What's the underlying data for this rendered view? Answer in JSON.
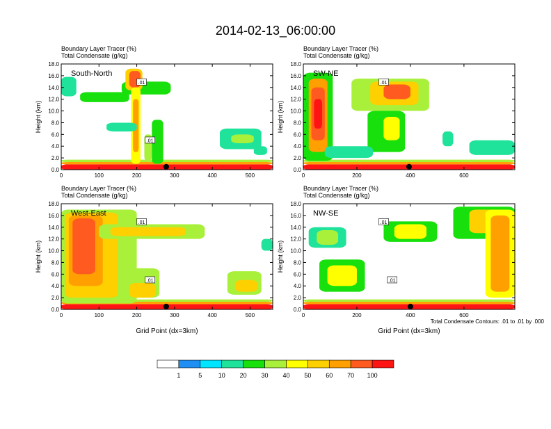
{
  "figure_title": "2014-02-13_06:00:00",
  "chart_data": [
    {
      "type": "heatmap",
      "title": "South-North",
      "header_line1": "Boundary Layer Tracer    (%)",
      "header_line2": "Total Condensate   (g/kg)",
      "ylabel": "Height (km)",
      "xlabel": "",
      "xlim": [
        0,
        560
      ],
      "ylim": [
        0,
        18
      ],
      "xticks": [
        0,
        100,
        200,
        300,
        400,
        500
      ],
      "yticks": [
        "0.0",
        "2.0",
        "4.0",
        "6.0",
        "8.0",
        "10.0",
        "12.0",
        "14.0",
        "16.0",
        "18.0"
      ],
      "contour_labels": [
        ".01",
        ".01"
      ],
      "marker_x": 278,
      "shapes": [
        {
          "x": [
            0,
            560
          ],
          "y": [
            0,
            0.9
          ],
          "level": 100
        },
        {
          "x": [
            0,
            560
          ],
          "y": [
            0.9,
            1.3
          ],
          "level": 60
        },
        {
          "x": [
            0,
            560
          ],
          "y": [
            1.3,
            1.7
          ],
          "level": 30
        },
        {
          "x": [
            0,
            40
          ],
          "y": [
            12.5,
            15.8
          ],
          "level": 10
        },
        {
          "x": [
            50,
            180
          ],
          "y": [
            11.5,
            13.2
          ],
          "level": 20
        },
        {
          "x": [
            160,
            290
          ],
          "y": [
            12.8,
            15.0
          ],
          "level": 20
        },
        {
          "x": [
            170,
            215
          ],
          "y": [
            13.5,
            17.2
          ],
          "level": 50
        },
        {
          "x": [
            180,
            210
          ],
          "y": [
            14.0,
            16.8
          ],
          "level": 70
        },
        {
          "x": [
            185,
            210
          ],
          "y": [
            1.0,
            14.0
          ],
          "level": 40
        },
        {
          "x": [
            190,
            205
          ],
          "y": [
            3.0,
            12.0
          ],
          "level": 60
        },
        {
          "x": [
            120,
            200
          ],
          "y": [
            6.5,
            8.0
          ],
          "level": 10
        },
        {
          "x": [
            220,
            240
          ],
          "y": [
            1.5,
            6.0
          ],
          "level": 30
        },
        {
          "x": [
            240,
            270
          ],
          "y": [
            1.0,
            8.5
          ],
          "level": 20
        },
        {
          "x": [
            420,
            530
          ],
          "y": [
            3.5,
            7.0
          ],
          "level": 10
        },
        {
          "x": [
            450,
            510
          ],
          "y": [
            4.5,
            6.0
          ],
          "level": 30
        },
        {
          "x": [
            510,
            545
          ],
          "y": [
            2.5,
            4.0
          ],
          "level": 10
        }
      ]
    },
    {
      "type": "heatmap",
      "title": "SW-NE",
      "header_line1": "Boundary Layer Tracer    (%)",
      "header_line2": "Total Condensate   (g/kg)",
      "ylabel": "Height (km)",
      "xlabel": "",
      "xlim": [
        0,
        790
      ],
      "ylim": [
        0,
        18
      ],
      "xticks": [
        0,
        200,
        400,
        600
      ],
      "yticks": [
        "0.0",
        "2.0",
        "4.0",
        "6.0",
        "8.0",
        "10.0",
        "12.0",
        "14.0",
        "16.0",
        "18.0"
      ],
      "contour_labels": [
        ".01"
      ],
      "marker_x": 395,
      "shapes": [
        {
          "x": [
            0,
            790
          ],
          "y": [
            0,
            0.9
          ],
          "level": 100
        },
        {
          "x": [
            0,
            790
          ],
          "y": [
            0.9,
            1.3
          ],
          "level": 60
        },
        {
          "x": [
            0,
            790
          ],
          "y": [
            1.3,
            1.7
          ],
          "level": 30
        },
        {
          "x": [
            0,
            110
          ],
          "y": [
            1.5,
            16.5
          ],
          "level": 20
        },
        {
          "x": [
            20,
            90
          ],
          "y": [
            3.0,
            15.5
          ],
          "level": 60
        },
        {
          "x": [
            30,
            80
          ],
          "y": [
            5.0,
            14.0
          ],
          "level": 80
        },
        {
          "x": [
            40,
            70
          ],
          "y": [
            7.0,
            12.0
          ],
          "level": 100
        },
        {
          "x": [
            180,
            470
          ],
          "y": [
            10.0,
            15.5
          ],
          "level": 30
        },
        {
          "x": [
            250,
            430
          ],
          "y": [
            11.0,
            15.0
          ],
          "level": 50
        },
        {
          "x": [
            300,
            400
          ],
          "y": [
            12.0,
            14.5
          ],
          "level": 70
        },
        {
          "x": [
            240,
            380
          ],
          "y": [
            3.0,
            10.0
          ],
          "level": 20
        },
        {
          "x": [
            300,
            360
          ],
          "y": [
            5.0,
            9.0
          ],
          "level": 40
        },
        {
          "x": [
            80,
            260
          ],
          "y": [
            2.0,
            4.0
          ],
          "level": 10
        },
        {
          "x": [
            520,
            560
          ],
          "y": [
            4.0,
            6.5
          ],
          "level": 10
        },
        {
          "x": [
            620,
            790
          ],
          "y": [
            2.5,
            5.0
          ],
          "level": 10
        }
      ]
    },
    {
      "type": "heatmap",
      "title": "West-East",
      "header_line1": "Boundary Layer Tracer    (%)",
      "header_line2": "Total Condensate   (g/kg)",
      "ylabel": "Height (km)",
      "xlabel": "Grid Point (dx=3km)",
      "xlim": [
        0,
        560
      ],
      "ylim": [
        0,
        18
      ],
      "xticks": [
        0,
        100,
        200,
        300,
        400,
        500
      ],
      "yticks": [
        "0.0",
        "2.0",
        "4.0",
        "6.0",
        "8.0",
        "10.0",
        "12.0",
        "14.0",
        "16.0",
        "18.0"
      ],
      "contour_labels": [
        ".01",
        ".01"
      ],
      "marker_x": 278,
      "shapes": [
        {
          "x": [
            0,
            560
          ],
          "y": [
            0,
            0.9
          ],
          "level": 100
        },
        {
          "x": [
            0,
            560
          ],
          "y": [
            0.9,
            1.3
          ],
          "level": 60
        },
        {
          "x": [
            0,
            560
          ],
          "y": [
            1.3,
            1.7
          ],
          "level": 30
        },
        {
          "x": [
            0,
            200
          ],
          "y": [
            1.0,
            17.0
          ],
          "level": 30
        },
        {
          "x": [
            10,
            150
          ],
          "y": [
            2.0,
            16.5
          ],
          "level": 50
        },
        {
          "x": [
            20,
            110
          ],
          "y": [
            4.0,
            16.0
          ],
          "level": 60
        },
        {
          "x": [
            30,
            90
          ],
          "y": [
            6.0,
            15.5
          ],
          "level": 80
        },
        {
          "x": [
            100,
            380
          ],
          "y": [
            12.0,
            14.5
          ],
          "level": 30
        },
        {
          "x": [
            130,
            330
          ],
          "y": [
            12.5,
            14.0
          ],
          "level": 50
        },
        {
          "x": [
            150,
            260
          ],
          "y": [
            2.0,
            7.0
          ],
          "level": 30
        },
        {
          "x": [
            180,
            250
          ],
          "y": [
            2.0,
            4.5
          ],
          "level": 50
        },
        {
          "x": [
            440,
            530
          ],
          "y": [
            2.5,
            6.5
          ],
          "level": 30
        },
        {
          "x": [
            460,
            520
          ],
          "y": [
            3.0,
            5.0
          ],
          "level": 50
        },
        {
          "x": [
            530,
            560
          ],
          "y": [
            10.0,
            12.0
          ],
          "level": 10
        }
      ]
    },
    {
      "type": "heatmap",
      "title": "NW-SE",
      "header_line1": "Boundary Layer Tracer    (%)",
      "header_line2": "Total Condensate   (g/kg)",
      "ylabel": "Height (km)",
      "xlabel": "Grid Point (dx=3km)",
      "xlim": [
        0,
        790
      ],
      "ylim": [
        0,
        18
      ],
      "xticks": [
        0,
        200,
        400,
        600
      ],
      "yticks": [
        "0.0",
        "2.0",
        "4.0",
        "6.0",
        "8.0",
        "10.0",
        "12.0",
        "14.0",
        "16.0",
        "18.0"
      ],
      "contour_labels": [
        ".01",
        ".01"
      ],
      "marker_x": 400,
      "shapes": [
        {
          "x": [
            0,
            790
          ],
          "y": [
            0,
            0.9
          ],
          "level": 100
        },
        {
          "x": [
            0,
            790
          ],
          "y": [
            0.9,
            1.3
          ],
          "level": 60
        },
        {
          "x": [
            0,
            790
          ],
          "y": [
            1.3,
            1.7
          ],
          "level": 30
        },
        {
          "x": [
            20,
            160
          ],
          "y": [
            10.5,
            14.0
          ],
          "level": 10
        },
        {
          "x": [
            50,
            130
          ],
          "y": [
            11.0,
            13.5
          ],
          "level": 30
        },
        {
          "x": [
            300,
            500
          ],
          "y": [
            11.5,
            15.0
          ],
          "level": 20
        },
        {
          "x": [
            340,
            460
          ],
          "y": [
            12.0,
            14.5
          ],
          "level": 40
        },
        {
          "x": [
            560,
            790
          ],
          "y": [
            12.0,
            17.5
          ],
          "level": 20
        },
        {
          "x": [
            620,
            790
          ],
          "y": [
            13.0,
            17.0
          ],
          "level": 50
        },
        {
          "x": [
            680,
            790
          ],
          "y": [
            2.0,
            17.0
          ],
          "level": 40
        },
        {
          "x": [
            700,
            770
          ],
          "y": [
            3.0,
            16.0
          ],
          "level": 60
        },
        {
          "x": [
            60,
            230
          ],
          "y": [
            3.0,
            8.5
          ],
          "level": 20
        },
        {
          "x": [
            90,
            200
          ],
          "y": [
            4.0,
            7.5
          ],
          "level": 40
        }
      ]
    }
  ],
  "colorbar": {
    "ticks": [
      "1",
      "5",
      "10",
      "20",
      "30",
      "40",
      "50",
      "60",
      "70",
      "100"
    ],
    "colors": [
      "#ffffff",
      "#1f8ff3",
      "#00e5ff",
      "#1fe39b",
      "#18e00c",
      "#a8f03a",
      "#ffff00",
      "#ffd000",
      "#ffa000",
      "#ff5a1f",
      "#ff1414"
    ]
  },
  "contour_note": "Total Condensate Contours: .01 to .01 by .000"
}
